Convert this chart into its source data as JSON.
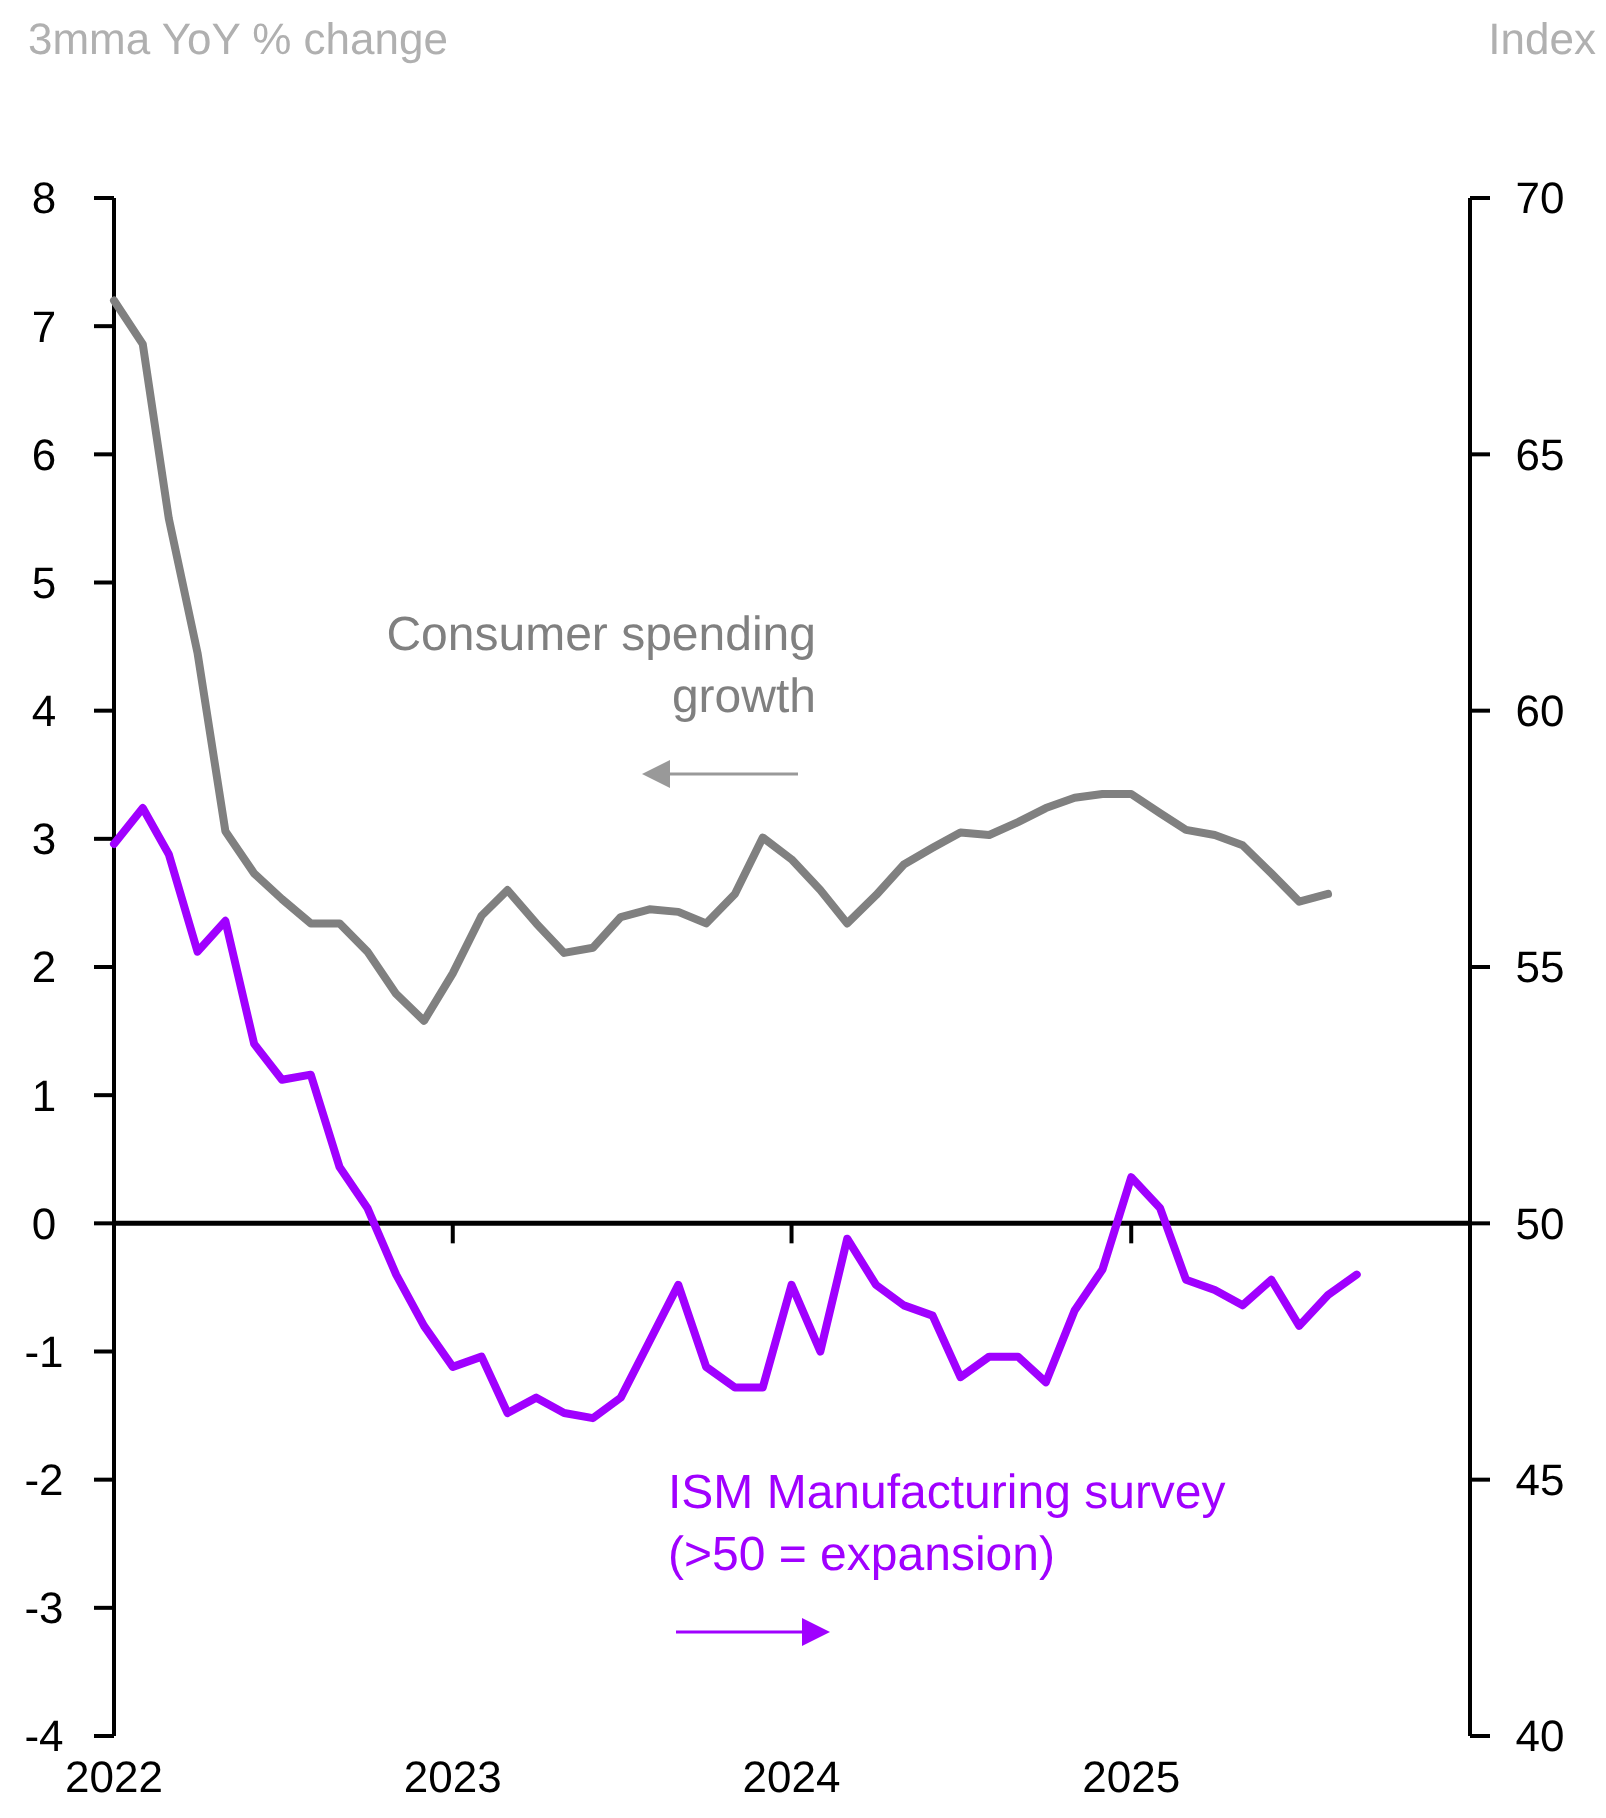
{
  "chart_data": {
    "type": "line",
    "ylabel": "3mma YoY % change",
    "y2label": "Index",
    "x": [
      "2022-01",
      "2022-02",
      "2022-03",
      "2022-04",
      "2022-05",
      "2022-06",
      "2022-07",
      "2022-08",
      "2022-09",
      "2022-10",
      "2022-11",
      "2022-12",
      "2023-01",
      "2023-02",
      "2023-03",
      "2023-04",
      "2023-05",
      "2023-06",
      "2023-07",
      "2023-08",
      "2023-09",
      "2023-10",
      "2023-11",
      "2023-12",
      "2024-01",
      "2024-02",
      "2024-03",
      "2024-04",
      "2024-05",
      "2024-06",
      "2024-07",
      "2024-08",
      "2024-09",
      "2024-10",
      "2024-11",
      "2024-12",
      "2025-01",
      "2025-02",
      "2025-03",
      "2025-04",
      "2025-05",
      "2025-06",
      "2025-07",
      "2025-08",
      "2025-09"
    ],
    "series": [
      {
        "color": "#808080",
        "values": [
          7.2,
          6.86,
          5.5,
          4.45,
          3.06,
          2.73,
          2.53,
          2.34,
          2.34,
          2.12,
          1.79,
          1.58,
          1.95,
          2.4,
          2.6,
          2.34,
          2.11,
          2.15,
          2.39,
          2.45,
          2.43,
          2.34,
          2.57,
          3.01,
          2.84,
          2.6,
          2.34,
          2.56,
          2.8,
          2.93,
          3.05,
          3.03,
          3.13,
          3.24,
          3.32,
          3.35,
          3.35,
          3.2,
          3.07,
          3.03,
          2.95,
          2.73,
          2.51,
          2.57,
          null
        ]
      },
      {
        "color": "#a000ff",
        "axis": "y2",
        "values": [
          57.4,
          58.1,
          57.2,
          55.3,
          55.9,
          53.5,
          52.8,
          52.9,
          51.1,
          50.3,
          49.0,
          48.0,
          47.2,
          47.4,
          46.3,
          46.6,
          46.3,
          46.2,
          46.6,
          47.7,
          48.8,
          47.2,
          46.8,
          46.8,
          48.8,
          47.5,
          49.7,
          48.8,
          48.4,
          48.2,
          47.0,
          47.4,
          47.4,
          46.9,
          48.3,
          49.1,
          50.9,
          50.3,
          48.9,
          48.7,
          48.4,
          48.9,
          48.0,
          48.6,
          49.0
        ]
      }
    ],
    "xlim": [
      "2022-01",
      "2026-01"
    ],
    "xticks": [
      {
        "value": "2022-01",
        "label": "2022"
      },
      {
        "value": "2023-01",
        "label": "2023"
      },
      {
        "value": "2024-01",
        "label": "2024"
      },
      {
        "value": "2025-01",
        "label": "2025"
      }
    ],
    "ylim": [
      -4,
      8
    ],
    "yticks": [
      -4,
      -3,
      -2,
      -1,
      0,
      1,
      2,
      3,
      4,
      5,
      6,
      7,
      8
    ],
    "y2lim": [
      40,
      70
    ],
    "y2ticks": [
      40,
      45,
      50,
      55,
      60,
      65,
      70
    ],
    "annotations": [
      "Consumer spending\ngrowth",
      "ISM Manufacturing survey\n(>50 = expansion)"
    ],
    "marker": "none",
    "line_style": "solid"
  }
}
